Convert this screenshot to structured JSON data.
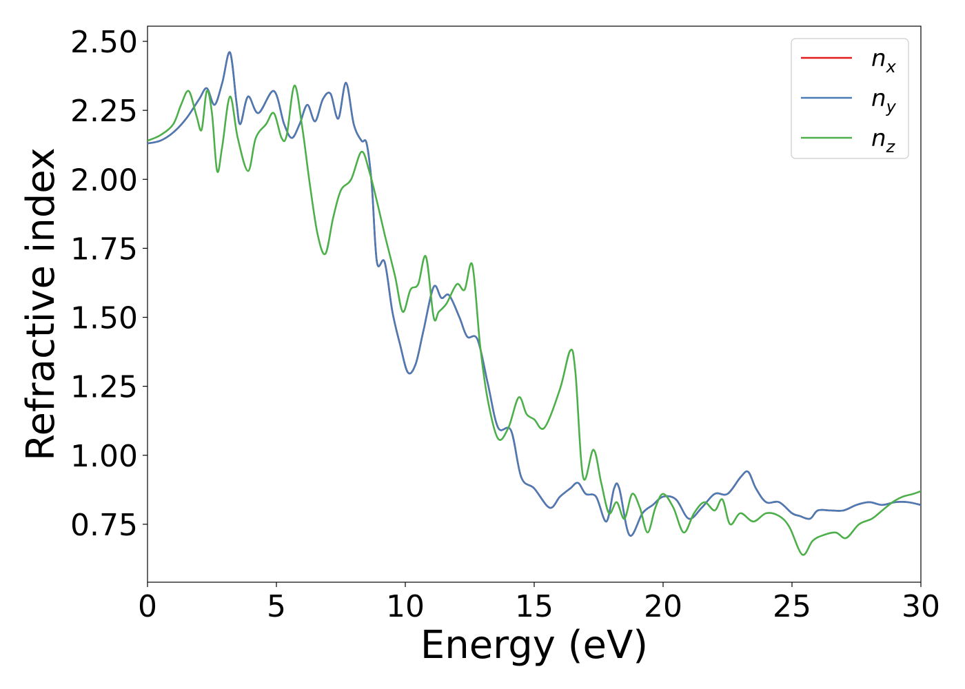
{
  "chart_data": {
    "type": "line",
    "xlabel": "Energy (eV)",
    "ylabel": "Refractive index",
    "xlim": [
      0,
      30
    ],
    "ylim": [
      0.54,
      2.555
    ],
    "xticks": [
      0,
      5,
      10,
      15,
      20,
      25,
      30
    ],
    "xtick_labels": [
      "0",
      "5",
      "10",
      "15",
      "20",
      "25",
      "30"
    ],
    "yticks": [
      0.75,
      1.0,
      1.25,
      1.5,
      1.75,
      2.0,
      2.25,
      2.5
    ],
    "ytick_labels": [
      "0.75",
      "1.00",
      "1.25",
      "1.50",
      "1.75",
      "2.00",
      "2.25",
      "2.50"
    ],
    "grid": false,
    "legend_position": "top-right",
    "series": [
      {
        "name": "n_x",
        "label_base": "n",
        "label_sub": "x",
        "color": "#e41a1c",
        "x": [
          0,
          0.5,
          1,
          1.5,
          2,
          2.3,
          2.6,
          2.9,
          3.2,
          3.45,
          3.6,
          3.9,
          4.3,
          4.9,
          5.3,
          5.6,
          5.9,
          6.2,
          6.5,
          6.8,
          7.1,
          7.4,
          7.7,
          8,
          8.3,
          8.5,
          8.7,
          8.9,
          9.2,
          9.5,
          9.8,
          10.1,
          10.4,
          10.7,
          11.1,
          11.4,
          11.7,
          12.1,
          12.4,
          12.8,
          13.2,
          13.6,
          14.1,
          14.5,
          15,
          15.6,
          16,
          16.4,
          16.7,
          17,
          17.4,
          17.8,
          18.1,
          18.3,
          18.7,
          19.2,
          19.6,
          20,
          20.5,
          21,
          21.5,
          22,
          22.5,
          23,
          23.3,
          23.6,
          24,
          24.5,
          25,
          25.3,
          25.7,
          26,
          26.5,
          27,
          27.5,
          28,
          28.5,
          29,
          29.5,
          30
        ],
        "y": [
          2.13,
          2.14,
          2.17,
          2.22,
          2.29,
          2.33,
          2.27,
          2.35,
          2.46,
          2.28,
          2.2,
          2.3,
          2.24,
          2.32,
          2.2,
          2.15,
          2.2,
          2.27,
          2.21,
          2.29,
          2.31,
          2.22,
          2.35,
          2.2,
          2.14,
          2.13,
          1.98,
          1.7,
          1.7,
          1.52,
          1.4,
          1.3,
          1.33,
          1.45,
          1.61,
          1.57,
          1.58,
          1.5,
          1.43,
          1.42,
          1.26,
          1.1,
          1.09,
          0.92,
          0.88,
          0.81,
          0.85,
          0.88,
          0.9,
          0.86,
          0.85,
          0.76,
          0.88,
          0.88,
          0.71,
          0.79,
          0.82,
          0.85,
          0.84,
          0.77,
          0.81,
          0.86,
          0.86,
          0.92,
          0.94,
          0.88,
          0.83,
          0.83,
          0.79,
          0.78,
          0.77,
          0.8,
          0.8,
          0.8,
          0.82,
          0.83,
          0.82,
          0.83,
          0.83,
          0.82
        ]
      },
      {
        "name": "n_y",
        "label_base": "n",
        "label_sub": "y",
        "color": "#4a7bb5",
        "x": [
          0,
          0.5,
          1,
          1.5,
          2,
          2.3,
          2.6,
          2.9,
          3.2,
          3.45,
          3.6,
          3.9,
          4.3,
          4.9,
          5.3,
          5.6,
          5.9,
          6.2,
          6.5,
          6.8,
          7.1,
          7.4,
          7.7,
          8,
          8.3,
          8.5,
          8.7,
          8.9,
          9.2,
          9.5,
          9.8,
          10.1,
          10.4,
          10.7,
          11.1,
          11.4,
          11.7,
          12.1,
          12.4,
          12.8,
          13.2,
          13.6,
          14.1,
          14.5,
          15,
          15.6,
          16,
          16.4,
          16.7,
          17,
          17.4,
          17.8,
          18.1,
          18.3,
          18.7,
          19.2,
          19.6,
          20,
          20.5,
          21,
          21.5,
          22,
          22.5,
          23,
          23.3,
          23.6,
          24,
          24.5,
          25,
          25.3,
          25.7,
          26,
          26.5,
          27,
          27.5,
          28,
          28.5,
          29,
          29.5,
          30
        ],
        "y": [
          2.13,
          2.14,
          2.17,
          2.22,
          2.29,
          2.33,
          2.27,
          2.35,
          2.46,
          2.28,
          2.2,
          2.3,
          2.24,
          2.32,
          2.2,
          2.15,
          2.2,
          2.27,
          2.21,
          2.29,
          2.31,
          2.22,
          2.35,
          2.2,
          2.14,
          2.13,
          1.98,
          1.7,
          1.7,
          1.52,
          1.4,
          1.3,
          1.33,
          1.45,
          1.61,
          1.57,
          1.58,
          1.5,
          1.43,
          1.42,
          1.26,
          1.1,
          1.09,
          0.92,
          0.88,
          0.81,
          0.85,
          0.88,
          0.9,
          0.86,
          0.85,
          0.76,
          0.88,
          0.88,
          0.71,
          0.79,
          0.82,
          0.85,
          0.84,
          0.77,
          0.81,
          0.86,
          0.86,
          0.92,
          0.94,
          0.88,
          0.83,
          0.83,
          0.79,
          0.78,
          0.77,
          0.8,
          0.8,
          0.8,
          0.82,
          0.83,
          0.82,
          0.83,
          0.83,
          0.82
        ]
      },
      {
        "name": "n_z",
        "label_base": "n",
        "label_sub": "z",
        "color": "#4daf4a",
        "x": [
          0,
          0.5,
          1,
          1.3,
          1.6,
          1.9,
          2.1,
          2.3,
          2.5,
          2.7,
          2.9,
          3.2,
          3.5,
          3.9,
          4.2,
          4.6,
          4.9,
          5.2,
          5.4,
          5.7,
          6,
          6.3,
          6.6,
          6.9,
          7.2,
          7.5,
          7.9,
          8.3,
          8.6,
          8.9,
          9.2,
          9.6,
          9.9,
          10.2,
          10.5,
          10.8,
          11.1,
          11.3,
          11.6,
          12,
          12.3,
          12.6,
          12.9,
          13.2,
          13.6,
          14,
          14.4,
          14.7,
          15,
          15.4,
          16,
          16.4,
          16.6,
          16.9,
          17.3,
          17.6,
          17.9,
          18.2,
          18.5,
          18.8,
          19.1,
          19.4,
          19.7,
          20,
          20.4,
          20.8,
          21.2,
          21.6,
          22,
          22.3,
          22.6,
          23,
          23.5,
          24,
          24.5,
          24.9,
          25.4,
          25.8,
          26.2,
          26.7,
          27.1,
          27.6,
          28.1,
          28.5,
          28.9,
          29.3,
          29.7,
          30
        ],
        "y": [
          2.14,
          2.16,
          2.2,
          2.27,
          2.32,
          2.23,
          2.18,
          2.32,
          2.24,
          2.03,
          2.12,
          2.3,
          2.15,
          2.03,
          2.15,
          2.2,
          2.24,
          2.15,
          2.16,
          2.34,
          2.19,
          1.98,
          1.8,
          1.73,
          1.86,
          1.96,
          2.0,
          2.1,
          2.03,
          1.92,
          1.8,
          1.65,
          1.52,
          1.6,
          1.62,
          1.72,
          1.5,
          1.52,
          1.55,
          1.62,
          1.6,
          1.69,
          1.4,
          1.2,
          1.06,
          1.1,
          1.21,
          1.15,
          1.13,
          1.1,
          1.24,
          1.38,
          1.3,
          0.92,
          1.02,
          0.9,
          0.79,
          0.83,
          0.77,
          0.86,
          0.81,
          0.72,
          0.81,
          0.86,
          0.81,
          0.72,
          0.79,
          0.83,
          0.8,
          0.84,
          0.75,
          0.79,
          0.76,
          0.79,
          0.78,
          0.74,
          0.64,
          0.69,
          0.71,
          0.72,
          0.7,
          0.75,
          0.77,
          0.8,
          0.83,
          0.85,
          0.86,
          0.87
        ]
      }
    ]
  }
}
